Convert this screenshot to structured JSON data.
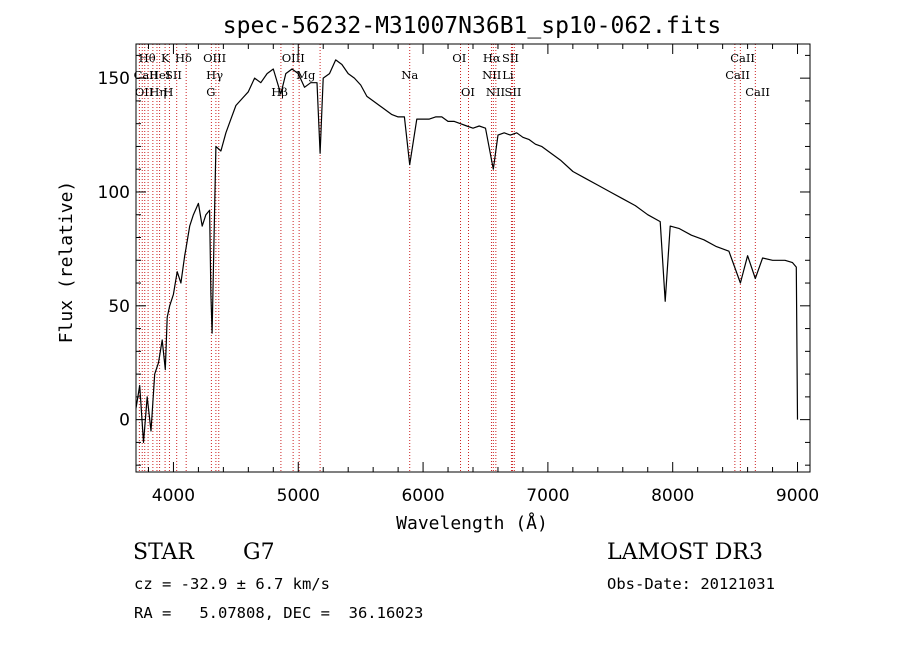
{
  "chart_data": {
    "type": "line",
    "title": "spec-56232-M31007N36B1_sp10-062.fits",
    "xlabel": "Wavelength (Å)",
    "ylabel": "Flux (relative)",
    "xlim": [
      3700,
      9100
    ],
    "ylim": [
      -23,
      165
    ],
    "xticks": [
      4000,
      5000,
      6000,
      7000,
      8000,
      9000
    ],
    "yticks": [
      0,
      50,
      100,
      150
    ],
    "x_minor_step": 200,
    "y_minor_step": 10,
    "grid": false,
    "series": [
      {
        "name": "spectrum",
        "color": "#000000",
        "x": [
          3700,
          3730,
          3760,
          3790,
          3820,
          3850,
          3880,
          3910,
          3935,
          3950,
          3970,
          4000,
          4030,
          4060,
          4090,
          4100,
          4130,
          4160,
          4200,
          4230,
          4260,
          4290,
          4300,
          4310,
          4340,
          4380,
          4420,
          4460,
          4500,
          4550,
          4600,
          4650,
          4700,
          4750,
          4800,
          4860,
          4900,
          4950,
          5000,
          5050,
          5100,
          5150,
          5175,
          5200,
          5250,
          5300,
          5350,
          5400,
          5450,
          5500,
          5550,
          5600,
          5650,
          5700,
          5750,
          5800,
          5850,
          5893,
          5950,
          6000,
          6050,
          6100,
          6150,
          6200,
          6250,
          6300,
          6350,
          6400,
          6450,
          6500,
          6563,
          6600,
          6650,
          6700,
          6750,
          6800,
          6850,
          6900,
          6950,
          7000,
          7100,
          7200,
          7300,
          7400,
          7500,
          7600,
          7700,
          7800,
          7900,
          7940,
          7980,
          8050,
          8150,
          8250,
          8350,
          8450,
          8542,
          8600,
          8662,
          8720,
          8800,
          8900,
          8960,
          8990,
          9000
        ],
        "values": [
          5,
          15,
          -10,
          10,
          -5,
          20,
          25,
          35,
          22,
          45,
          50,
          55,
          65,
          60,
          72,
          75,
          85,
          90,
          95,
          85,
          90,
          92,
          55,
          38,
          120,
          118,
          126,
          132,
          138,
          141,
          144,
          150,
          148,
          152,
          154,
          143,
          152,
          154,
          152,
          146,
          148,
          148,
          117,
          150,
          152,
          158,
          156,
          152,
          150,
          147,
          142,
          140,
          138,
          136,
          134,
          133,
          133,
          112,
          132,
          132,
          132,
          133,
          133,
          131,
          131,
          130,
          129,
          128,
          129,
          128,
          110,
          125,
          126,
          125,
          126,
          124,
          123,
          121,
          120,
          118,
          114,
          109,
          106,
          103,
          100,
          97,
          94,
          90,
          87,
          52,
          85,
          84,
          81,
          79,
          76,
          74,
          60,
          72,
          62,
          71,
          70,
          70,
          69,
          67,
          0
        ]
      }
    ],
    "line_markers": [
      {
        "wavelength": 3727,
        "label": "OII"
      },
      {
        "wavelength": 3750,
        "label": "CaII"
      },
      {
        "wavelength": 3770,
        "label": "Hθ"
      },
      {
        "wavelength": 3797,
        "label": ""
      },
      {
        "wavelength": 3835,
        "label": "Hη"
      },
      {
        "wavelength": 3868,
        "label": ""
      },
      {
        "wavelength": 3889,
        "label": "HeI"
      },
      {
        "wavelength": 3933,
        "label": "K"
      },
      {
        "wavelength": 3968,
        "label": "H"
      },
      {
        "wavelength": 4026,
        "label": "SII"
      },
      {
        "wavelength": 4102,
        "label": "Hδ"
      },
      {
        "wavelength": 4304,
        "label": "G"
      },
      {
        "wavelength": 4340,
        "label": "Hγ"
      },
      {
        "wavelength": 4363,
        "label": "OIII"
      },
      {
        "wavelength": 4861,
        "label": "Hβ"
      },
      {
        "wavelength": 4959,
        "label": "OIII"
      },
      {
        "wavelength": 5007,
        "label": ""
      },
      {
        "wavelength": 5175,
        "label": "Mg"
      },
      {
        "wavelength": 5893,
        "label": "Na"
      },
      {
        "wavelength": 6300,
        "label": "OI"
      },
      {
        "wavelength": 6364,
        "label": "OI"
      },
      {
        "wavelength": 6548,
        "label": "NII"
      },
      {
        "wavelength": 6563,
        "label": "Hα"
      },
      {
        "wavelength": 6583,
        "label": "NII"
      },
      {
        "wavelength": 6708,
        "label": "Li"
      },
      {
        "wavelength": 6716,
        "label": "SII"
      },
      {
        "wavelength": 6731,
        "label": "SII"
      },
      {
        "wavelength": 8498,
        "label": "CaII"
      },
      {
        "wavelength": 8542,
        "label": "CaII"
      },
      {
        "wavelength": 8662,
        "label": "CaII"
      }
    ],
    "marker_labels": [
      {
        "text": "Hθ",
        "wavelength": 3790,
        "row": 0
      },
      {
        "text": "K",
        "wavelength": 3935,
        "row": 0
      },
      {
        "text": "Hδ",
        "wavelength": 4080,
        "row": 0
      },
      {
        "text": "OIII",
        "wavelength": 4330,
        "row": 0
      },
      {
        "text": "OIII",
        "wavelength": 4960,
        "row": 0
      },
      {
        "text": "OI",
        "wavelength": 6290,
        "row": 0
      },
      {
        "text": "Hα",
        "wavelength": 6550,
        "row": 0
      },
      {
        "text": "SII",
        "wavelength": 6700,
        "row": 0
      },
      {
        "text": "CaII",
        "wavelength": 8560,
        "row": 0
      },
      {
        "text": "CaII",
        "wavelength": 3780,
        "row": 1
      },
      {
        "text": "HeI",
        "wavelength": 3890,
        "row": 1
      },
      {
        "text": "SII",
        "wavelength": 4000,
        "row": 1
      },
      {
        "text": "Hγ",
        "wavelength": 4330,
        "row": 1
      },
      {
        "text": "Mg",
        "wavelength": 5060,
        "row": 1
      },
      {
        "text": "Na",
        "wavelength": 5893,
        "row": 1
      },
      {
        "text": "NII",
        "wavelength": 6550,
        "row": 1
      },
      {
        "text": "Li",
        "wavelength": 6680,
        "row": 1
      },
      {
        "text": "CaII",
        "wavelength": 8520,
        "row": 1
      },
      {
        "text": "OII",
        "wavelength": 3765,
        "row": 2
      },
      {
        "text": "Hη",
        "wavelength": 3875,
        "row": 2
      },
      {
        "text": "H",
        "wavelength": 3960,
        "row": 2
      },
      {
        "text": "G",
        "wavelength": 4300,
        "row": 2
      },
      {
        "text": "Hβ",
        "wavelength": 4850,
        "row": 2
      },
      {
        "text": "OI",
        "wavelength": 6360,
        "row": 2
      },
      {
        "text": "NII",
        "wavelength": 6580,
        "row": 2
      },
      {
        "text": "SII",
        "wavelength": 6720,
        "row": 2
      },
      {
        "text": "CaII",
        "wavelength": 8680,
        "row": 2
      }
    ]
  },
  "colors": {
    "marker_line": "#cc2222",
    "axis": "#000000"
  },
  "info": {
    "object_class": "STAR",
    "subclass": "G7",
    "survey": "LAMOST DR3",
    "redshift_line": "cz = -32.9 ± 6.7 km/s",
    "obs_date_line": "Obs-Date: 20121031",
    "coords_line": "RA =   5.07808, DEC =  36.16023"
  }
}
